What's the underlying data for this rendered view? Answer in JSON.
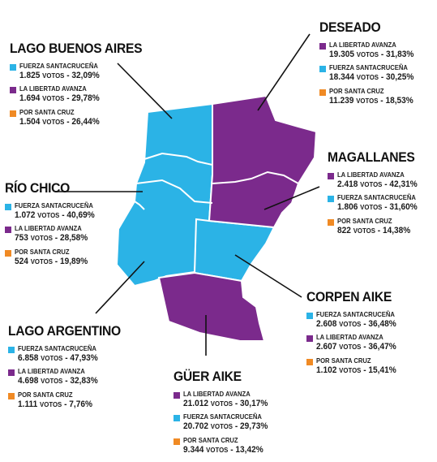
{
  "colors": {
    "fuerza_santacrucena": "#2bb3e6",
    "la_libertad_avanza": "#7b2a8c",
    "por_santa_cruz": "#f08a24",
    "border": "#ffffff",
    "leader_line": "#111111"
  },
  "votes_word": "VOTOS",
  "departments": [
    {
      "key": "deseado",
      "name": "DESEADO",
      "region_color": "purple",
      "results": [
        {
          "party": "LA LIBERTAD AVANZA",
          "votes": "19.305",
          "pct": "31,83%",
          "color_key": "la_libertad_avanza"
        },
        {
          "party": "FUERZA SANTACRUCEÑA",
          "votes": "18.344",
          "pct": "30,25%",
          "color_key": "fuerza_santacrucena"
        },
        {
          "party": "POR SANTA CRUZ",
          "votes": "11.239",
          "pct": "18,53%",
          "color_key": "por_santa_cruz"
        }
      ]
    },
    {
      "key": "lago_buenos_aires",
      "name": "LAGO BUENOS AIRES",
      "region_color": "blue",
      "results": [
        {
          "party": "FUERZA SANTACRUCEÑA",
          "votes": "1.825",
          "pct": "32,09%",
          "color_key": "fuerza_santacrucena"
        },
        {
          "party": "LA LIBERTAD AVANZA",
          "votes": "1.694",
          "pct": "29,78%",
          "color_key": "la_libertad_avanza"
        },
        {
          "party": "POR SANTA CRUZ",
          "votes": "1.504",
          "pct": "26,44%",
          "color_key": "por_santa_cruz"
        }
      ]
    },
    {
      "key": "magallanes",
      "name": "MAGALLANES",
      "region_color": "purple",
      "results": [
        {
          "party": "LA LIBERTAD AVANZA",
          "votes": "2.418",
          "pct": "42,31%",
          "color_key": "la_libertad_avanza"
        },
        {
          "party": "FUERZA SANTACRUCEÑA",
          "votes": "1.806",
          "pct": "31,60%",
          "color_key": "fuerza_santacrucena"
        },
        {
          "party": "POR SANTA CRUZ",
          "votes": "822",
          "pct": "14,38%",
          "color_key": "por_santa_cruz"
        }
      ]
    },
    {
      "key": "rio_chico",
      "name": "RÍO CHICO",
      "region_color": "blue",
      "results": [
        {
          "party": "FUERZA SANTACRUCEÑA",
          "votes": "1.072",
          "pct": "40,69%",
          "color_key": "fuerza_santacrucena"
        },
        {
          "party": "LA LIBERTAD AVANZA",
          "votes": "753",
          "pct": "28,58%",
          "color_key": "la_libertad_avanza"
        },
        {
          "party": "POR SANTA CRUZ",
          "votes": "524",
          "pct": "19,89%",
          "color_key": "por_santa_cruz"
        }
      ]
    },
    {
      "key": "corpen_aike",
      "name": "CORPEN AIKE",
      "region_color": "blue",
      "results": [
        {
          "party": "FUERZA SANTACRUCEÑA",
          "votes": "2.608",
          "pct": "36,48%",
          "color_key": "fuerza_santacrucena"
        },
        {
          "party": "LA LIBERTAD AVANZA",
          "votes": "2.607",
          "pct": "36,47%",
          "color_key": "la_libertad_avanza"
        },
        {
          "party": "POR SANTA CRUZ",
          "votes": "1.102",
          "pct": "15,41%",
          "color_key": "por_santa_cruz"
        }
      ]
    },
    {
      "key": "lago_argentino",
      "name": "LAGO ARGENTINO",
      "region_color": "blue",
      "results": [
        {
          "party": "FUERZA SANTACRUCEÑA",
          "votes": "6.858",
          "pct": "47,93%",
          "color_key": "fuerza_santacrucena"
        },
        {
          "party": "LA LIBERTAD AVANZA",
          "votes": "4.698",
          "pct": "32,83%",
          "color_key": "la_libertad_avanza"
        },
        {
          "party": "POR SANTA CRUZ",
          "votes": "1.111",
          "pct": "7,76%",
          "color_key": "por_santa_cruz"
        }
      ]
    },
    {
      "key": "guer_aike",
      "name": "GÜER AIKE",
      "region_color": "purple",
      "results": [
        {
          "party": "LA LIBERTAD AVANZA",
          "votes": "21.012",
          "pct": "30,17%",
          "color_key": "la_libertad_avanza"
        },
        {
          "party": "FUERZA SANTACRUCEÑA",
          "votes": "20.702",
          "pct": "29,73%",
          "color_key": "fuerza_santacrucena"
        },
        {
          "party": "POR SANTA CRUZ",
          "votes": "9.344",
          "pct": "13,42%",
          "color_key": "por_santa_cruz"
        }
      ]
    }
  ]
}
